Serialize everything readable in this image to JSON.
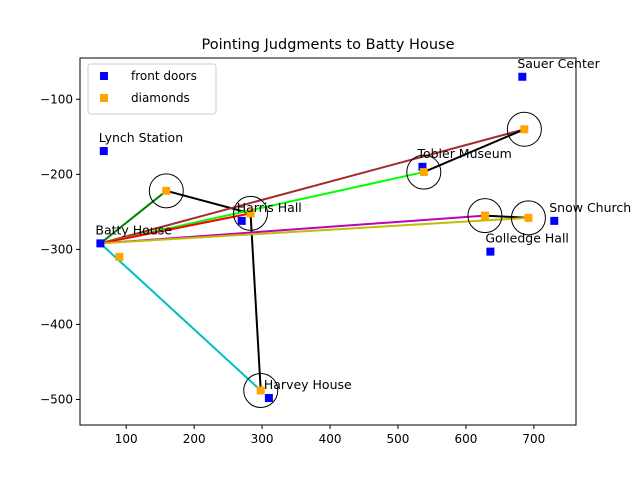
{
  "chart_data": {
    "type": "scatter",
    "title": "Pointing Judgments to Batty House",
    "xlabel": "",
    "ylabel": "",
    "xlim": [
      32,
      762
    ],
    "ylim": [
      -534,
      -45
    ],
    "xticks": [
      100,
      200,
      300,
      400,
      500,
      600,
      700
    ],
    "yticks": [
      -100,
      -200,
      -300,
      -400,
      -500
    ],
    "grid": false,
    "legend_position": "upper-left",
    "series": [
      {
        "name": "front doors",
        "color": "#0000ff",
        "points": [
          {
            "x": 62,
            "y": -292
          },
          {
            "x": 67,
            "y": -169
          },
          {
            "x": 270,
            "y": -262
          },
          {
            "x": 310,
            "y": -498
          },
          {
            "x": 536,
            "y": -190
          },
          {
            "x": 636,
            "y": -303
          },
          {
            "x": 683,
            "y": -70
          },
          {
            "x": 730,
            "y": -262
          }
        ]
      },
      {
        "name": "diamonds",
        "color": "#ffa500",
        "points": [
          {
            "x": 90,
            "y": -310
          },
          {
            "x": 159,
            "y": -222
          },
          {
            "x": 283,
            "y": -252
          },
          {
            "x": 298,
            "y": -488
          },
          {
            "x": 538,
            "y": -197
          },
          {
            "x": 628,
            "y": -255
          },
          {
            "x": 686,
            "y": -140
          },
          {
            "x": 692,
            "y": -258
          }
        ]
      }
    ],
    "labels": [
      {
        "text": "Batty House",
        "x": 62,
        "y": -292
      },
      {
        "text": "Lynch Station",
        "x": 67,
        "y": -169
      },
      {
        "text": "Harris Hall",
        "x": 270,
        "y": -262
      },
      {
        "text": "Harvey House",
        "x": 310,
        "y": -498
      },
      {
        "text": "Tobler Museum",
        "x": 536,
        "y": -190
      },
      {
        "text": "Golledge Hall",
        "x": 636,
        "y": -303
      },
      {
        "text": "Sauer Center",
        "x": 683,
        "y": -70
      },
      {
        "text": "Snow Church",
        "x": 730,
        "y": -262
      }
    ],
    "pointing_lines": [
      {
        "color": "#008000",
        "points": [
          [
            62,
            -292
          ],
          [
            159,
            -222
          ]
        ]
      },
      {
        "color": "#000000",
        "points": [
          [
            159,
            -222
          ],
          [
            283,
            -252
          ]
        ]
      },
      {
        "color": "#a52a2a",
        "points": [
          [
            62,
            -292
          ],
          [
            686,
            -140
          ]
        ]
      },
      {
        "color": "#000000",
        "points": [
          [
            686,
            -140
          ],
          [
            538,
            -197
          ]
        ]
      },
      {
        "color": "#00ff00",
        "points": [
          [
            62,
            -292
          ],
          [
            538,
            -197
          ]
        ]
      },
      {
        "color": "#ff0000",
        "points": [
          [
            62,
            -292
          ],
          [
            283,
            -252
          ]
        ]
      },
      {
        "color": "#000000",
        "points": [
          [
            283,
            -252
          ],
          [
            298,
            -488
          ]
        ]
      },
      {
        "color": "#bf00bf",
        "points": [
          [
            62,
            -292
          ],
          [
            628,
            -255
          ]
        ]
      },
      {
        "color": "#000000",
        "points": [
          [
            628,
            -255
          ],
          [
            692,
            -258
          ]
        ]
      },
      {
        "color": "#bfbf00",
        "points": [
          [
            62,
            -292
          ],
          [
            692,
            -258
          ]
        ]
      },
      {
        "color": "#00bfbf",
        "points": [
          [
            62,
            -292
          ],
          [
            298,
            -488
          ]
        ]
      }
    ],
    "angle_arcs": [
      {
        "x": 159,
        "y": -222
      },
      {
        "x": 283,
        "y": -252
      },
      {
        "x": 298,
        "y": -488
      },
      {
        "x": 538,
        "y": -197
      },
      {
        "x": 628,
        "y": -255
      },
      {
        "x": 686,
        "y": -140
      },
      {
        "x": 692,
        "y": -258
      }
    ]
  }
}
